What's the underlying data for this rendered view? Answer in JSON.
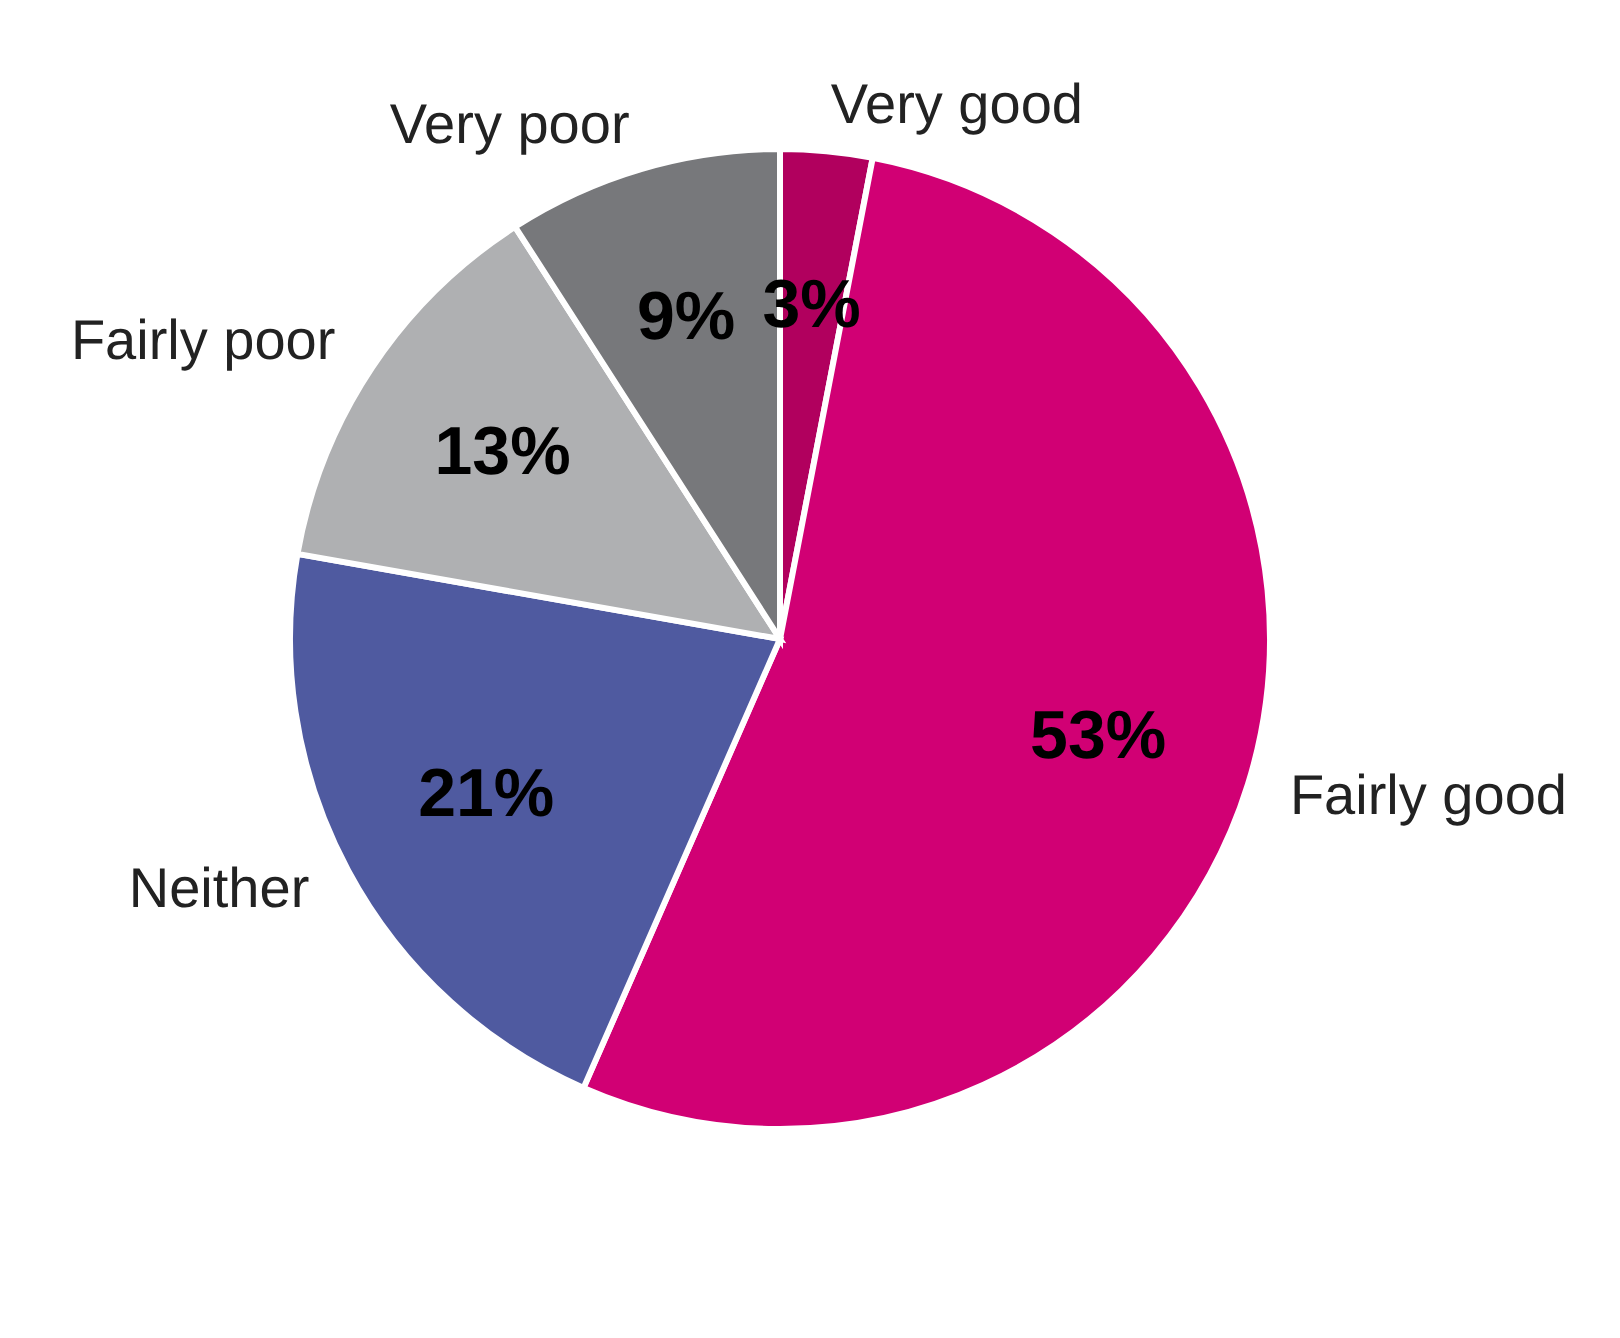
{
  "chart_data": {
    "type": "pie",
    "categories": [
      "Very good",
      "Fairly good",
      "Neither",
      "Fairly poor",
      "Very poor"
    ],
    "values": [
      3,
      53,
      21,
      13,
      9
    ],
    "colors": [
      "#b1005e",
      "#d10074",
      "#4f5aa0",
      "#afb0b2",
      "#77787b"
    ],
    "value_labels": [
      "3%",
      "53%",
      "21%",
      "13%",
      "9%"
    ],
    "legend": false
  }
}
